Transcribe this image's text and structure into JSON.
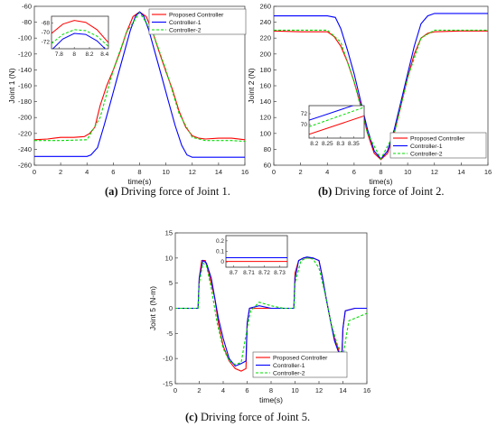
{
  "colors": {
    "proposed": "#ff0000",
    "controller1": "#0000ff",
    "controller2": "#00dd00"
  },
  "chart_data": [
    {
      "id": "a",
      "type": "line",
      "caption_letter": "(a)",
      "caption_text": " Driving force of Joint 1.",
      "xlabel": "time(s)",
      "ylabel": "Joint 1 (N)",
      "xlim": [
        0,
        16
      ],
      "ylim": [
        -260,
        -60
      ],
      "xticks": [
        0,
        2,
        4,
        6,
        8,
        10,
        12,
        14,
        16
      ],
      "yticks": [
        -260,
        -240,
        -220,
        -200,
        -180,
        -160,
        -140,
        -120,
        -100,
        -80,
        -60
      ],
      "legend_position": "top-right",
      "legend": [
        "Proposed Controller",
        "Controller-1",
        "Controller-2"
      ],
      "series": [
        {
          "name": "Proposed Controller",
          "color_key": "proposed",
          "style": "solid",
          "x": [
            0,
            1,
            1.5,
            2,
            3,
            3.8,
            4.2,
            4.6,
            5,
            5.5,
            6,
            6.5,
            7,
            7.5,
            8,
            8.5,
            9,
            9.5,
            10,
            10.5,
            11,
            11.5,
            12,
            12.5,
            13,
            14,
            15,
            16
          ],
          "y": [
            -228,
            -227,
            -226,
            -225,
            -225,
            -224,
            -220,
            -212,
            -185,
            -160,
            -140,
            -118,
            -93,
            -73,
            -67,
            -73,
            -93,
            -118,
            -142,
            -165,
            -192,
            -212,
            -223,
            -226,
            -227,
            -226,
            -226,
            -228
          ]
        },
        {
          "name": "Controller-1",
          "color_key": "controller1",
          "style": "solid",
          "x": [
            0,
            2,
            4,
            4.3,
            4.8,
            5.3,
            5.8,
            6.3,
            6.8,
            7.3,
            7.7,
            8,
            8.3,
            8.7,
            9.2,
            9.7,
            10.2,
            10.7,
            11.2,
            11.6,
            12,
            12.5,
            14,
            16
          ],
          "y": [
            -249,
            -249,
            -249,
            -247,
            -238,
            -210,
            -180,
            -150,
            -120,
            -90,
            -72,
            -67,
            -72,
            -90,
            -120,
            -150,
            -180,
            -210,
            -235,
            -247,
            -250,
            -250,
            -250,
            -250
          ]
        },
        {
          "name": "Controller-2",
          "color_key": "controller2",
          "style": "dashed",
          "x": [
            0,
            2,
            4,
            5,
            6,
            7,
            8,
            9,
            10,
            11,
            12,
            13,
            14,
            15,
            16
          ],
          "y": [
            -229,
            -229,
            -228,
            -200,
            -140,
            -93,
            -68,
            -93,
            -140,
            -195,
            -225,
            -229,
            -229,
            -229,
            -230
          ]
        }
      ],
      "ticks_precision": 0,
      "inset": {
        "xlim": [
          7.7,
          8.45
        ],
        "ylim": [
          -73.5,
          -66.5
        ],
        "xticks": [
          7.8,
          8,
          8.2,
          8.4
        ],
        "xtick_labels": [
          "7.8",
          "8",
          "8.2",
          "8.4"
        ],
        "yticks": [
          -72,
          -70,
          -68
        ],
        "ytick_labels": [
          "-72",
          "-70",
          "-68"
        ],
        "series": [
          {
            "color_key": "proposed",
            "style": "solid",
            "x": [
              7.7,
              7.85,
              8,
              8.15,
              8.3,
              8.45
            ],
            "y": [
              -70.2,
              -68.2,
              -67.4,
              -67.8,
              -69.4,
              -72.2
            ]
          },
          {
            "color_key": "controller1",
            "style": "solid",
            "x": [
              7.7,
              7.85,
              8,
              8.15,
              8.3,
              8.45
            ],
            "y": [
              -73.8,
              -71.4,
              -70.2,
              -70.4,
              -71.8,
              -74.2
            ]
          },
          {
            "color_key": "controller2",
            "style": "dashed",
            "x": [
              7.7,
              7.85,
              8,
              8.15,
              8.3,
              8.45
            ],
            "y": [
              -72.4,
              -70.4,
              -69.4,
              -69.6,
              -70.8,
              -73.0
            ]
          }
        ]
      }
    },
    {
      "id": "b",
      "type": "line",
      "caption_letter": "(b)",
      "caption_text": " Driving force of Joint 2.",
      "xlabel": "time(s)",
      "ylabel": "Joint 2 (N)",
      "xlim": [
        0,
        16
      ],
      "ylim": [
        60,
        260
      ],
      "xticks": [
        0,
        2,
        4,
        6,
        8,
        10,
        12,
        14,
        16
      ],
      "yticks": [
        60,
        80,
        100,
        120,
        140,
        160,
        180,
        200,
        220,
        240,
        260
      ],
      "legend_position": "bottom-right",
      "legend": [
        "Proposed Controller",
        "Controller-1",
        "Controller-2"
      ],
      "series": [
        {
          "name": "Proposed Controller",
          "color_key": "proposed",
          "style": "solid",
          "x": [
            0,
            2,
            4,
            4.5,
            5,
            5.5,
            6,
            6.5,
            7,
            7.5,
            8,
            8.5,
            9,
            9.5,
            10,
            10.5,
            11,
            11.5,
            12,
            14,
            16
          ],
          "y": [
            229,
            228,
            228,
            222,
            210,
            190,
            165,
            135,
            100,
            75,
            67,
            75,
            100,
            135,
            170,
            200,
            220,
            226,
            228,
            229,
            229
          ]
        },
        {
          "name": "Controller-1",
          "color_key": "controller1",
          "style": "solid",
          "x": [
            0,
            2,
            4,
            4.6,
            5,
            5.5,
            6,
            6.5,
            7,
            7.5,
            8,
            8.5,
            9,
            9.5,
            10,
            10.5,
            11,
            11.5,
            12,
            14,
            16
          ],
          "y": [
            248,
            248,
            248,
            246,
            232,
            205,
            175,
            140,
            105,
            78,
            68,
            78,
            105,
            140,
            175,
            210,
            238,
            248,
            251,
            251,
            251
          ]
        },
        {
          "name": "Controller-2",
          "color_key": "controller2",
          "style": "dashed",
          "x": [
            0,
            2,
            4,
            5,
            6,
            7,
            8,
            9,
            10,
            11,
            12,
            14,
            16
          ],
          "y": [
            230,
            230,
            230,
            215,
            165,
            100,
            68,
            100,
            170,
            220,
            230,
            230,
            230
          ]
        }
      ],
      "ticks_precision": 0,
      "inset": {
        "xlim": [
          8.18,
          8.39
        ],
        "ylim": [
          67.5,
          73.5
        ],
        "xticks": [
          8.2,
          8.25,
          8.3,
          8.35
        ],
        "xtick_labels": [
          "8.2",
          "8.25",
          "8.3",
          "8.35"
        ],
        "yticks": [
          70,
          72
        ],
        "ytick_labels": [
          "70",
          "72"
        ],
        "series": [
          {
            "color_key": "proposed",
            "style": "solid",
            "x": [
              8.18,
              8.39
            ],
            "y": [
              68.2,
              71.6
            ]
          },
          {
            "color_key": "controller1",
            "style": "solid",
            "x": [
              8.18,
              8.39
            ],
            "y": [
              70.8,
              74.2
            ]
          },
          {
            "color_key": "controller2",
            "style": "dashed",
            "x": [
              8.18,
              8.39
            ],
            "y": [
              69.6,
              73.2
            ]
          }
        ]
      }
    },
    {
      "id": "c",
      "type": "line",
      "caption_letter": "(c)",
      "caption_text": " Driving force of Joint 5.",
      "xlabel": "time(s)",
      "ylabel": "Joint 5 (N-m)",
      "xlim": [
        0,
        16
      ],
      "ylim": [
        -15,
        15
      ],
      "xticks": [
        0,
        2,
        4,
        6,
        8,
        10,
        12,
        14,
        16
      ],
      "yticks": [
        -15,
        -10,
        -5,
        0,
        5,
        10,
        15
      ],
      "legend_position": "bottom-center",
      "legend": [
        "Proposed Controller",
        "Controller-1",
        "Controller-2"
      ],
      "series": [
        {
          "name": "Proposed Controller",
          "color_key": "proposed",
          "style": "solid",
          "x": [
            0,
            1.9,
            2,
            2.2,
            2.5,
            2.8,
            3,
            3.3,
            3.6,
            4,
            4.5,
            5,
            5.5,
            5.9,
            6,
            6.2,
            7,
            8,
            9,
            9.9,
            10,
            10.3,
            10.7,
            11,
            11.5,
            12,
            12.3,
            12.6,
            13,
            13.3,
            13.6,
            13.9,
            14,
            14.2,
            15,
            16
          ],
          "y": [
            0,
            0,
            6,
            9.5,
            9.5,
            7,
            5,
            2,
            -3,
            -7.5,
            -10.5,
            -12,
            -12.5,
            -12,
            -3,
            0,
            0,
            0,
            0,
            0,
            7,
            9.5,
            10,
            10,
            10,
            9.5,
            6,
            2,
            -3,
            -6,
            -8,
            -10.5,
            -4,
            -0.5,
            0,
            0
          ]
        },
        {
          "name": "Controller-1",
          "color_key": "controller1",
          "style": "solid",
          "x": [
            0,
            1.9,
            2,
            2.3,
            2.6,
            3,
            3.3,
            3.6,
            4,
            4.5,
            5,
            5.5,
            5.9,
            6,
            6.2,
            7,
            8,
            9,
            9.9,
            10,
            10.3,
            10.7,
            11,
            11.5,
            12,
            12.3,
            12.6,
            13,
            13.3,
            13.6,
            13.9,
            14,
            14.2,
            15,
            16
          ],
          "y": [
            0,
            0,
            6,
            9.5,
            9,
            6,
            2,
            -2,
            -6,
            -10,
            -11.5,
            -11,
            -10.5,
            -3,
            0,
            0.5,
            0,
            0,
            0,
            6,
            9.5,
            10,
            10.2,
            10,
            9.5,
            6,
            2,
            -3,
            -6.5,
            -8.5,
            -10,
            -4,
            -0.5,
            0,
            0
          ]
        },
        {
          "name": "Controller-2",
          "color_key": "controller2",
          "style": "dashed",
          "x": [
            0,
            1.9,
            2,
            2.3,
            2.6,
            3,
            3.5,
            4,
            4.5,
            5,
            5.5,
            6,
            6.3,
            7,
            8,
            9,
            9.9,
            10,
            10.5,
            11,
            11.5,
            12,
            12.5,
            13,
            13.5,
            14,
            14.5,
            15,
            16
          ],
          "y": [
            0,
            0,
            5,
            9,
            8.5,
            4,
            -3,
            -8,
            -10.5,
            -11.2,
            -10.8,
            -4,
            -0.5,
            1.2,
            0.5,
            0,
            0,
            5,
            9.5,
            10,
            9.8,
            8,
            3,
            -3,
            -7,
            -9.5,
            -2.5,
            -2,
            -1
          ]
        }
      ],
      "ticks_precision": 0,
      "inset": {
        "xlim": [
          8.695,
          8.735
        ],
        "ylim": [
          -0.05,
          0.25
        ],
        "xticks": [
          8.7,
          8.71,
          8.72,
          8.73
        ],
        "xtick_labels": [
          "8.7",
          "8.71",
          "8.72",
          "8.73"
        ],
        "yticks": [
          0,
          0.1,
          0.2
        ],
        "ytick_labels": [
          "0",
          "0.1",
          "0.2"
        ],
        "series": [
          {
            "color_key": "proposed",
            "style": "solid",
            "x": [
              8.695,
              8.735
            ],
            "y": [
              0.005,
              0.005
            ]
          },
          {
            "color_key": "controller1",
            "style": "solid",
            "x": [
              8.695,
              8.735
            ],
            "y": [
              0.04,
              0.04
            ]
          }
        ]
      }
    }
  ]
}
